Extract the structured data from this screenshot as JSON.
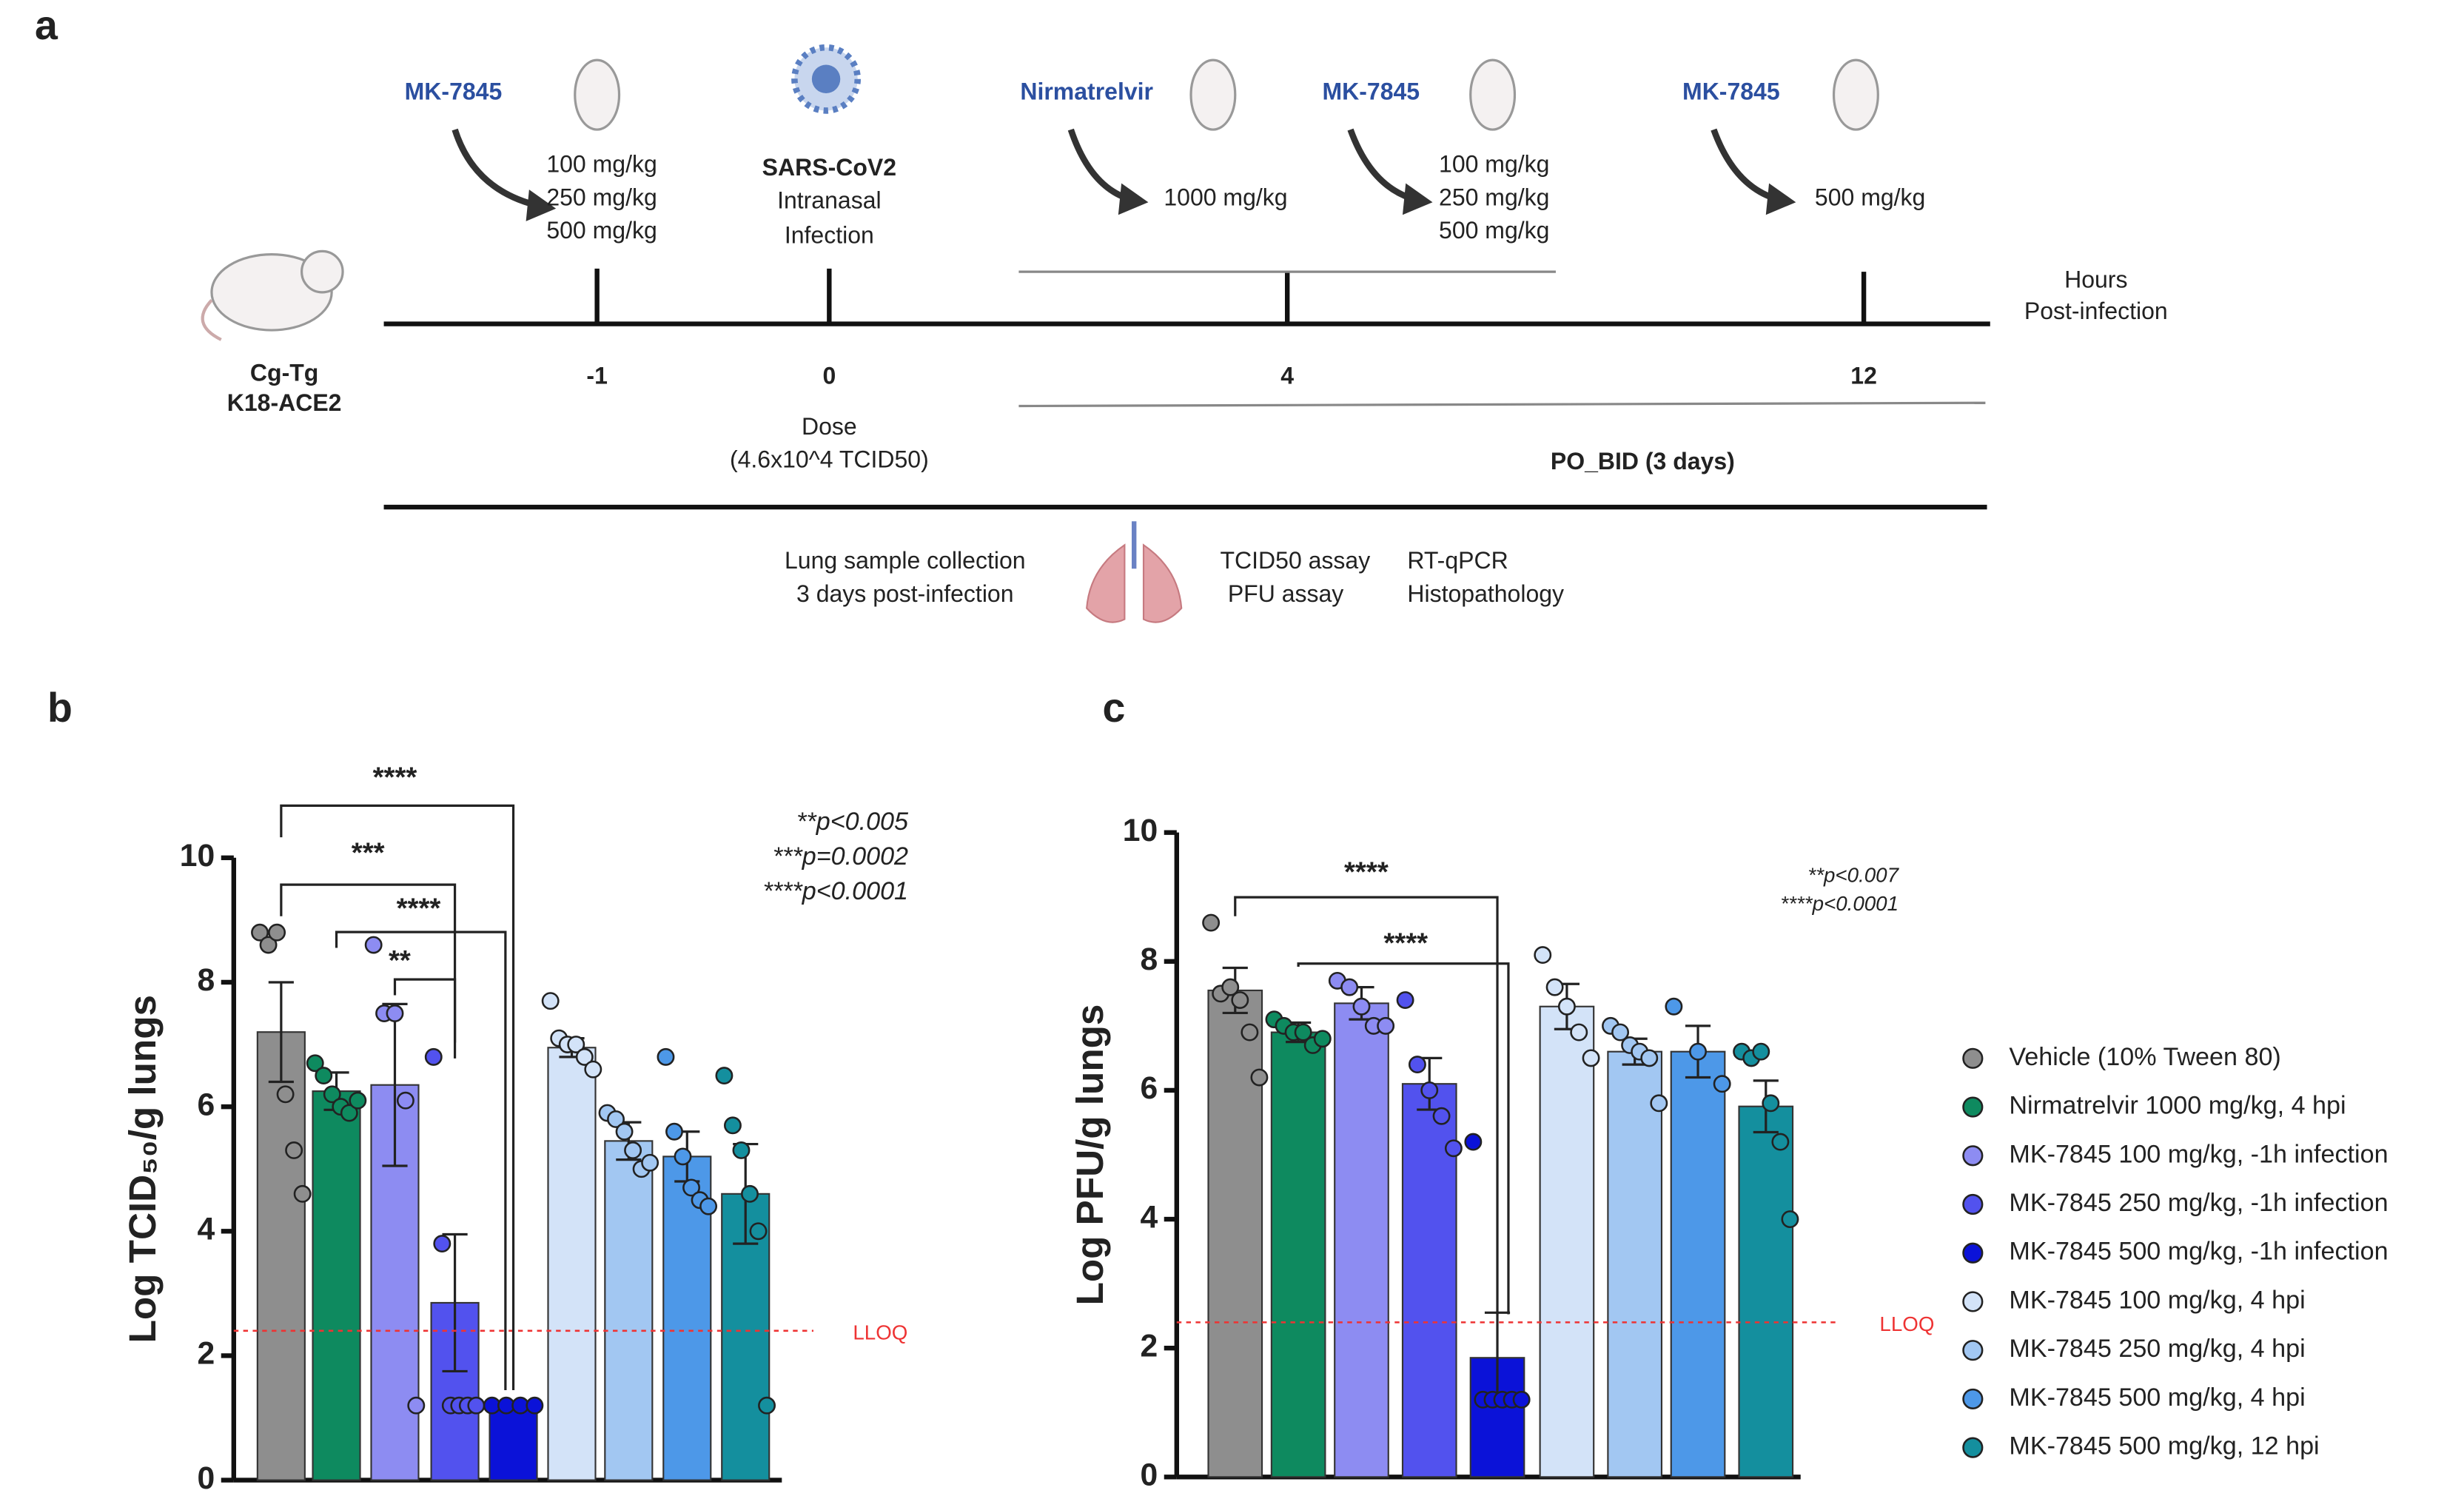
{
  "panel_a": {
    "label": "a",
    "drugs": [
      "MK-7845",
      "Nirmatrelvir",
      "MK-7845",
      "MK-7845"
    ],
    "doses": [
      [
        "100 mg/kg",
        "250 mg/kg",
        "500 mg/kg"
      ],
      [
        "1000 mg/kg"
      ],
      [
        "100 mg/kg",
        "250 mg/kg",
        "500 mg/kg"
      ],
      [
        "500 mg/kg"
      ]
    ],
    "virus": [
      "SARS-CoV2",
      "Intranasal",
      "Infection"
    ],
    "mouse": [
      "Cg-Tg",
      "K18-ACE2"
    ],
    "timepoints": [
      -1,
      0,
      4,
      12
    ],
    "axis_label": [
      "Hours",
      "Post-infection"
    ],
    "dose": [
      "Dose",
      "(4.6x10^4 TCID50)"
    ],
    "regimen": "PO_BID (3 days)",
    "collection": [
      "Lung sample collection",
      "3 days post-infection"
    ],
    "assays": [
      "TCID50 assay",
      "PFU assay",
      "RT-qPCR",
      "Histopathology"
    ]
  },
  "legend": {
    "names": [
      "Vehicle (10% Tween 80)",
      "Nirmatrelvir 1000 mg/kg, 4 hpi",
      "MK-7845 100 mg/kg, -1h infection",
      "MK-7845 250 mg/kg, -1h infection",
      "MK-7845 500 mg/kg, -1h infection",
      "MK-7845 100 mg/kg, 4 hpi",
      "MK-7845 250 mg/kg, 4 hpi",
      "MK-7845 500 mg/kg, 4 hpi",
      "MK-7845 500 mg/kg, 12 hpi"
    ],
    "colors": [
      "#8e8e8e",
      "#0e8a5f",
      "#8d8cf2",
      "#5252ee",
      "#0b12d8",
      "#d3e3f8",
      "#a2c7f2",
      "#4d98e8",
      "#148f9e"
    ]
  },
  "chart_data": [
    {
      "type": "bar",
      "panel_label": "b",
      "ylabel": "Log TCID₅₀/g lungs",
      "ylim": [
        0,
        10
      ],
      "yticks": [
        0,
        2,
        4,
        6,
        8,
        10
      ],
      "values": [
        7.2,
        6.25,
        6.35,
        2.85,
        1.2,
        6.95,
        5.45,
        5.2,
        4.6
      ],
      "errors": [
        0.8,
        0.3,
        1.3,
        1.1,
        0,
        0.15,
        0.3,
        0.4,
        0.8
      ],
      "points": [
        [
          8.8,
          8.6,
          8.8,
          6.2,
          5.3,
          4.6
        ],
        [
          6.7,
          6.5,
          6.2,
          6.0,
          5.9,
          6.1
        ],
        [
          8.6,
          7.5,
          7.5,
          6.1,
          1.2
        ],
        [
          6.8,
          3.8,
          1.2,
          1.2,
          1.2,
          1.2
        ],
        [
          1.2,
          1.2,
          1.2,
          1.2
        ],
        [
          7.7,
          7.1,
          7.0,
          7.0,
          6.8,
          6.6
        ],
        [
          5.9,
          5.8,
          5.6,
          5.3,
          5.0,
          5.1
        ],
        [
          6.8,
          5.6,
          5.2,
          4.7,
          4.5,
          4.4
        ],
        [
          6.5,
          5.7,
          5.3,
          4.6,
          4.0,
          1.2
        ]
      ],
      "lloq": {
        "value": 2.4,
        "label": "LLOQ"
      },
      "significance": [
        "****",
        "***",
        "****",
        "**"
      ],
      "stats": [
        "**p<0.005",
        "***p=0.0002",
        "****p<0.0001"
      ]
    },
    {
      "type": "bar",
      "panel_label": "c",
      "ylabel": "Log PFU/g lungs",
      "ylim": [
        0,
        10
      ],
      "yticks": [
        0,
        2,
        4,
        6,
        8,
        10
      ],
      "values": [
        7.55,
        6.9,
        7.35,
        6.1,
        1.85,
        7.3,
        6.6,
        6.6,
        5.75
      ],
      "errors": [
        0.35,
        0.15,
        0.25,
        0.4,
        0.7,
        0.35,
        0.2,
        0.4,
        0.4
      ],
      "points": [
        [
          8.6,
          7.5,
          7.6,
          7.4,
          6.9,
          6.2
        ],
        [
          7.1,
          7.0,
          6.9,
          6.9,
          6.7,
          6.8
        ],
        [
          7.7,
          7.6,
          7.3,
          7.0,
          7.0
        ],
        [
          7.4,
          6.4,
          6.0,
          5.6,
          5.1
        ],
        [
          5.2,
          1.2,
          1.2,
          1.2,
          1.2,
          1.2
        ],
        [
          8.1,
          7.6,
          7.3,
          6.9,
          6.5
        ],
        [
          7.0,
          6.9,
          6.7,
          6.6,
          6.5,
          5.8
        ],
        [
          7.3,
          6.6,
          6.1
        ],
        [
          6.6,
          6.5,
          6.6,
          5.8,
          5.2,
          4.0
        ]
      ],
      "lloq": {
        "value": 2.4,
        "label": "LLOQ"
      },
      "significance": [
        "****",
        "****"
      ],
      "stats": [
        "**p<0.007",
        "****p<0.0001"
      ]
    }
  ]
}
